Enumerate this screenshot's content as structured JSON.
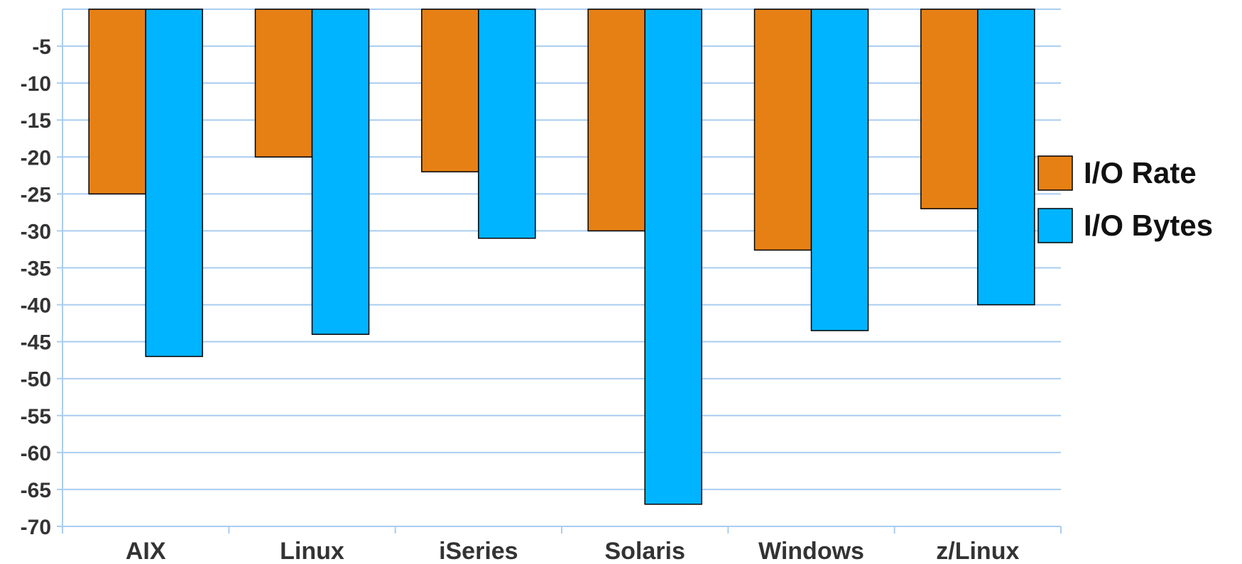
{
  "chart_data": {
    "type": "bar",
    "categories": [
      "AIX",
      "Linux",
      "iSeries",
      "Solaris",
      "Windows",
      "z/Linux"
    ],
    "series": [
      {
        "name": "I/O Rate",
        "color": "#e68014",
        "values": [
          -25,
          -20,
          -22,
          -30,
          -32.6,
          -27
        ]
      },
      {
        "name": "I/O Bytes",
        "color": "#00b4ff",
        "values": [
          -47,
          -44,
          -31,
          -67,
          -43.5,
          -40
        ]
      }
    ],
    "y_ticks": [
      -5,
      -10,
      -15,
      -20,
      -25,
      -30,
      -35,
      -40,
      -45,
      -50,
      -55,
      -60,
      -65,
      -70
    ],
    "y_tick_labels": [
      "-5",
      "-10",
      "-15",
      "-20",
      "-25",
      "-30",
      "-35",
      "-40",
      "-45",
      "-50",
      "-55",
      "-60",
      "-65",
      "-70"
    ],
    "ylim": [
      -70,
      0
    ],
    "title": "",
    "xlabel": "",
    "ylabel": "",
    "grid": true,
    "gridline_color": "#a9cdf0",
    "legend_position": "right"
  }
}
